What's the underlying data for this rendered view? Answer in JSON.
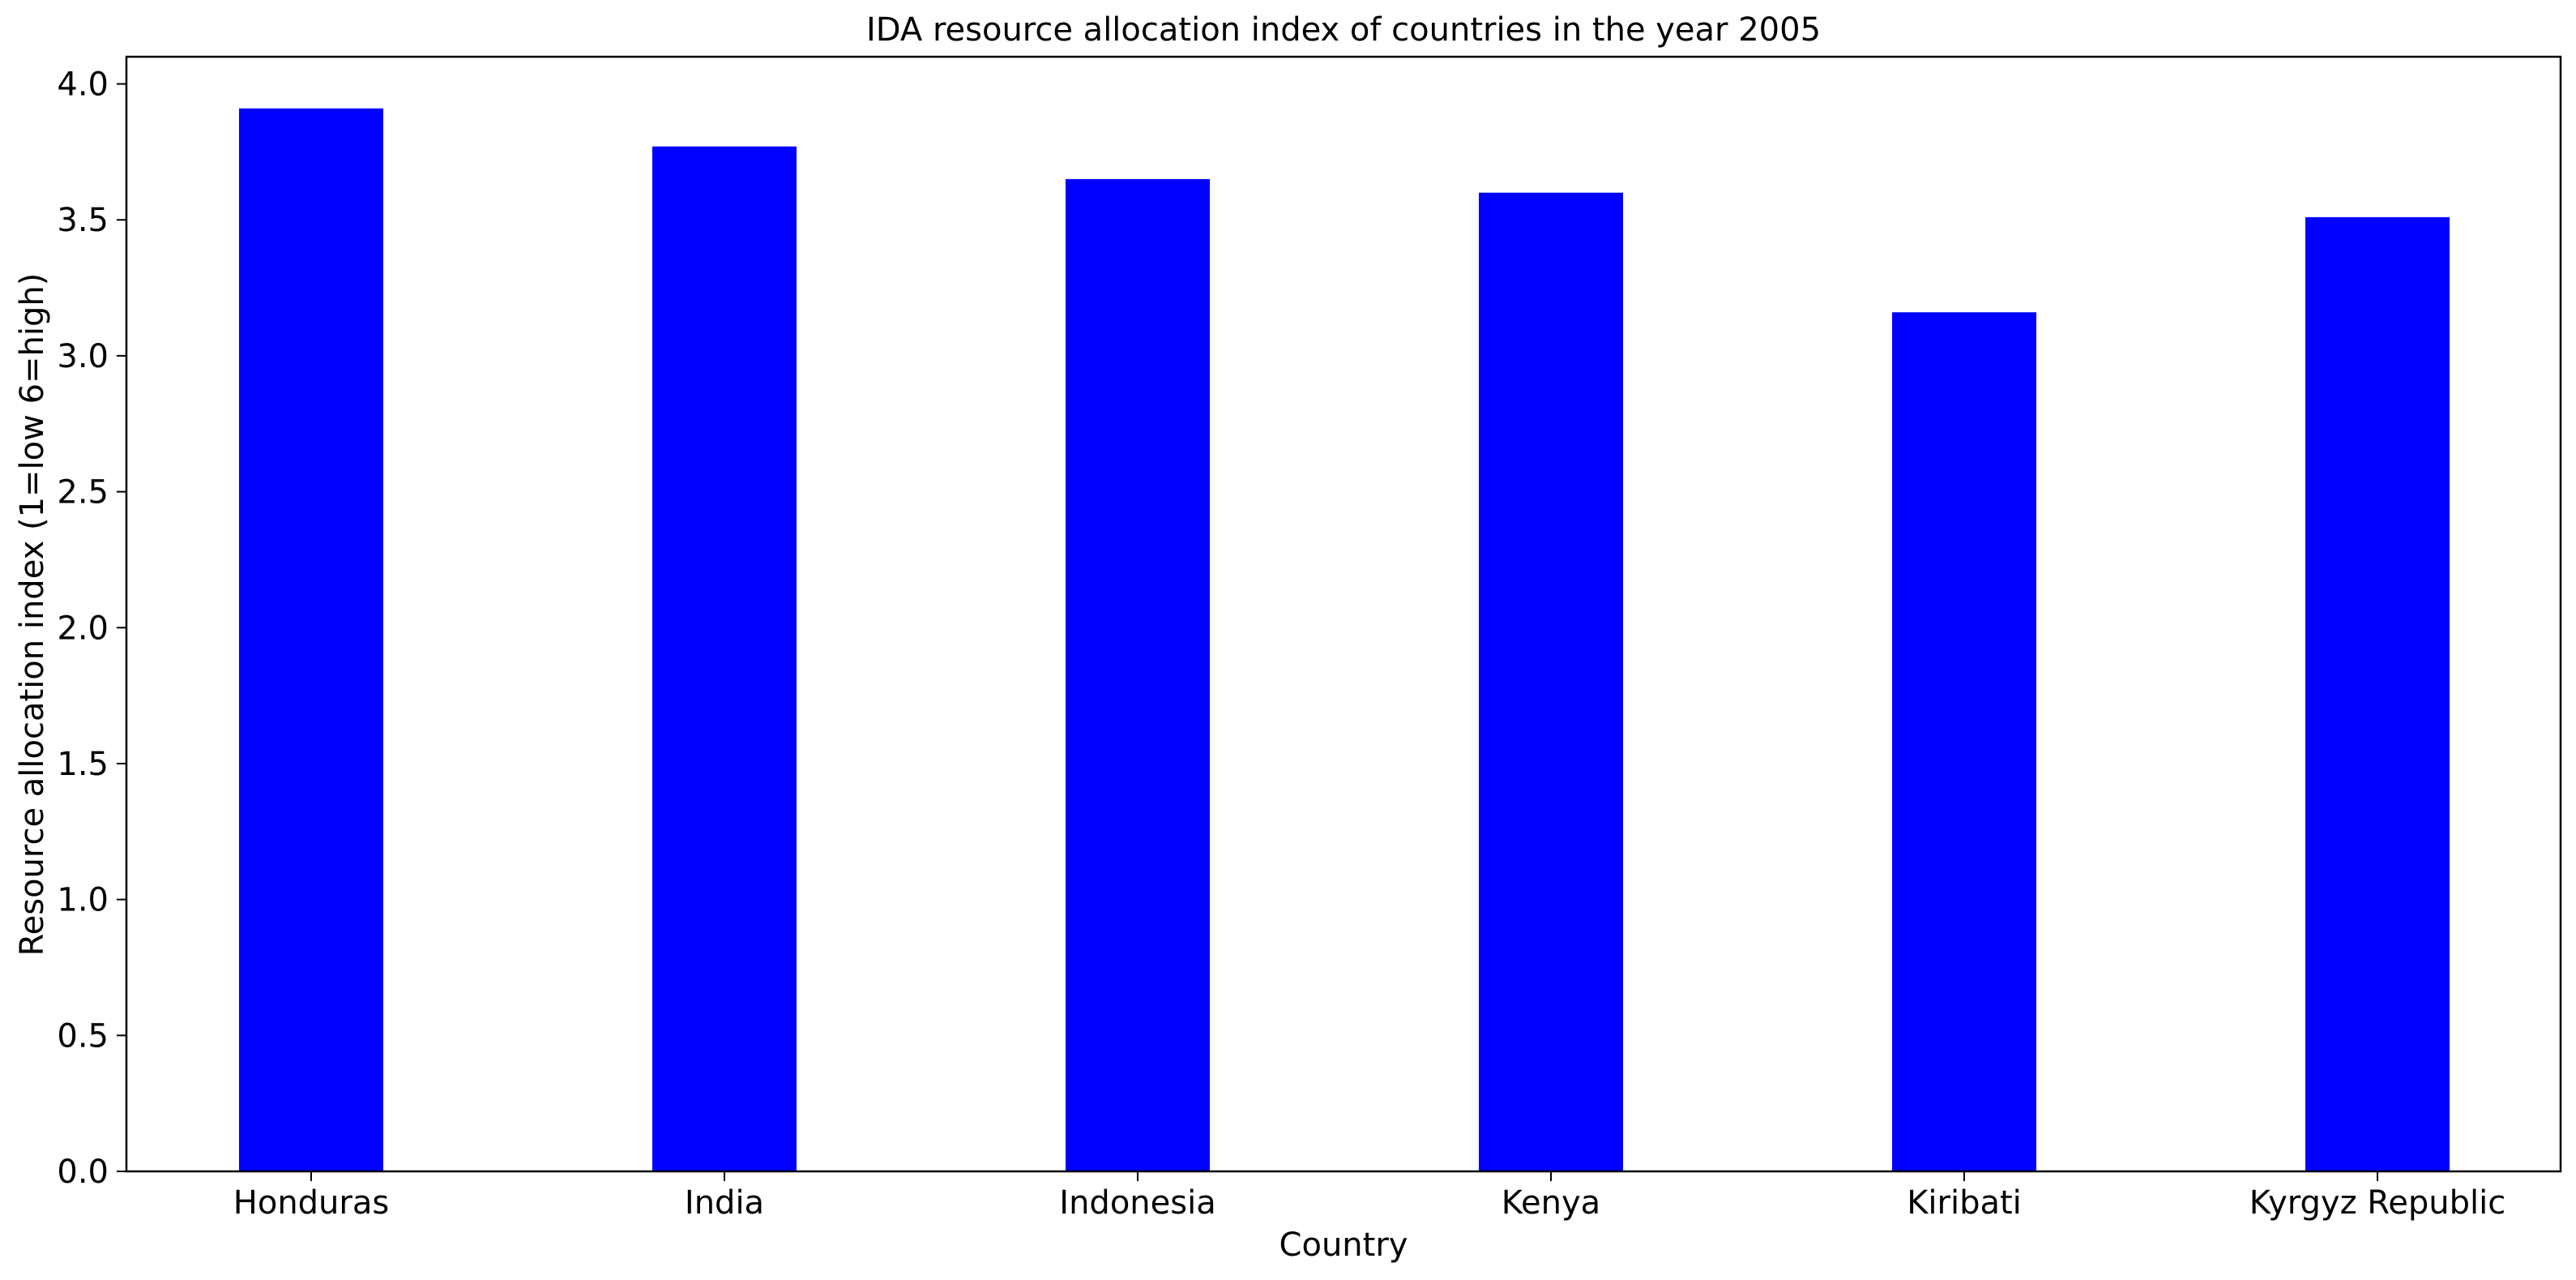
{
  "chart_data": {
    "type": "bar",
    "title": "IDA resource allocation index of countries in the year 2005",
    "xlabel": "Country",
    "ylabel": "Resource allocation index (1=low 6=high)",
    "categories": [
      "Honduras",
      "India",
      "Indonesia",
      "Kenya",
      "Kiribati",
      "Kyrgyz Republic"
    ],
    "values": [
      3.91,
      3.77,
      3.65,
      3.6,
      3.16,
      3.51
    ],
    "ylim": [
      0,
      4.1
    ],
    "yticks": [
      0.0,
      0.5,
      1.0,
      1.5,
      2.0,
      2.5,
      3.0,
      3.5,
      4.0
    ],
    "ytick_labels": [
      "0.0",
      "0.5",
      "1.0",
      "1.5",
      "2.0",
      "2.5",
      "3.0",
      "3.5",
      "4.0"
    ],
    "bar_color": "#0000ff",
    "grid": false,
    "legend": "none"
  }
}
